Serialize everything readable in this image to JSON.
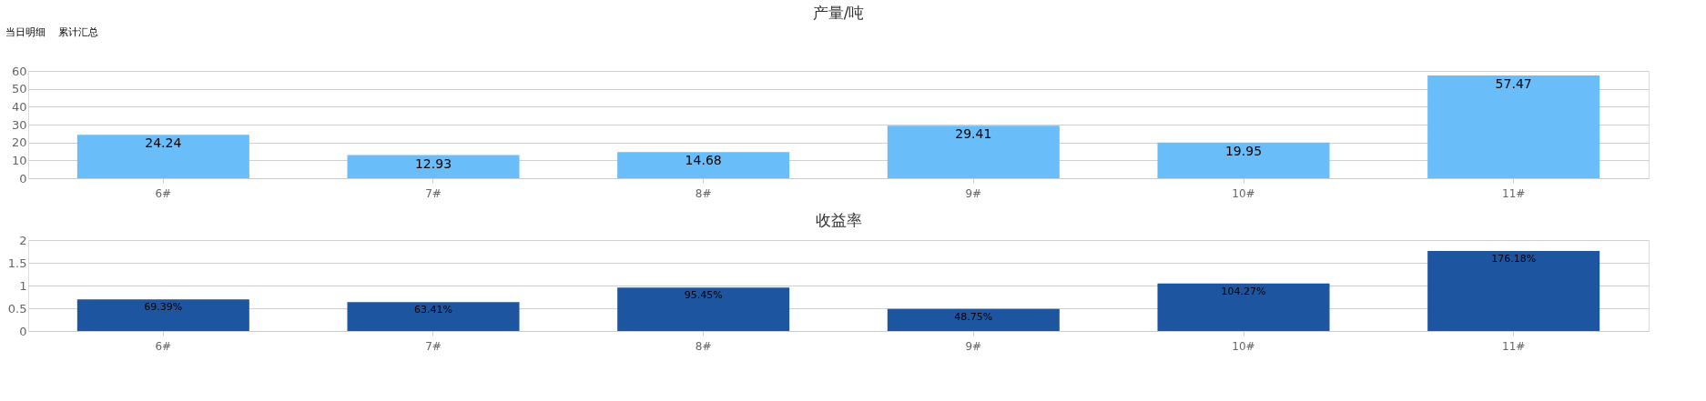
{
  "chart_data": [
    {
      "type": "bar",
      "title": "产量/吨",
      "annotations": [
        "当日明细",
        "累计汇总"
      ],
      "categories": [
        "6#",
        "7#",
        "8#",
        "9#",
        "10#",
        "11#"
      ],
      "values": [
        24.24,
        12.93,
        14.68,
        29.41,
        19.95,
        57.47
      ],
      "color": "#69bdf8",
      "ylim": [
        0,
        60
      ],
      "yticks": [
        0,
        10,
        20,
        30,
        40,
        50,
        60
      ],
      "grid": "y",
      "data_labels": true
    },
    {
      "type": "bar",
      "title": "收益率",
      "categories": [
        "6#",
        "7#",
        "8#",
        "9#",
        "10#",
        "11#"
      ],
      "values": [
        0.6939,
        0.6341,
        0.9545,
        0.4875,
        1.0427,
        1.7618
      ],
      "color": "#1e55a0",
      "value_labels": [
        "69.39%",
        "63.41%",
        "95.45%",
        "48.75%",
        "104.27%",
        "176.18%"
      ],
      "ylim": [
        0,
        2
      ],
      "yticks": [
        0,
        0.5,
        1,
        1.5,
        2
      ],
      "grid": "y"
    }
  ]
}
